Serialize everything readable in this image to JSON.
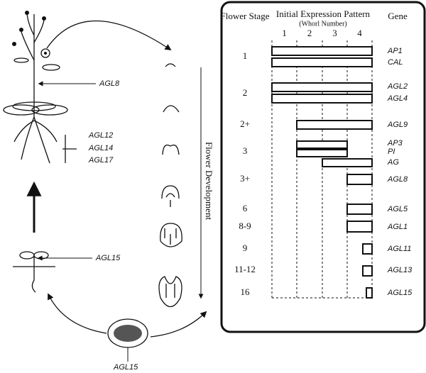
{
  "header": {
    "stage": "Flower Stage",
    "pattern": "Initial Expression Pattern",
    "whorl_label": "(Whorl Number)",
    "gene": "Gene"
  },
  "whorls": [
    "1",
    "2",
    "3",
    "4"
  ],
  "rows": [
    {
      "stage": "1",
      "genes": [
        "AP1",
        "CAL"
      ]
    },
    {
      "stage": "2",
      "genes": [
        "AGL2",
        "AGL4"
      ]
    },
    {
      "stage": "2+",
      "genes": [
        "AGL9"
      ]
    },
    {
      "stage": "3",
      "genes": [
        "AP3",
        "PI",
        "AG"
      ]
    },
    {
      "stage": "3+",
      "genes": [
        "AGL8"
      ]
    },
    {
      "stage": "6",
      "genes": [
        "AGL5"
      ]
    },
    {
      "stage": "8-9",
      "genes": [
        "AGL1"
      ]
    },
    {
      "stage": "9",
      "genes": [
        "AGL11"
      ]
    },
    {
      "stage": "11-12",
      "genes": [
        "AGL13"
      ]
    },
    {
      "stage": "16",
      "genes": [
        "AGL15"
      ]
    }
  ],
  "plant_labels": {
    "stem": "AGL8",
    "roots": [
      "AGL12",
      "AGL14",
      "AGL17"
    ],
    "seedling": "AGL15",
    "seed": "AGL15"
  },
  "flower_development": "Flower Development"
}
